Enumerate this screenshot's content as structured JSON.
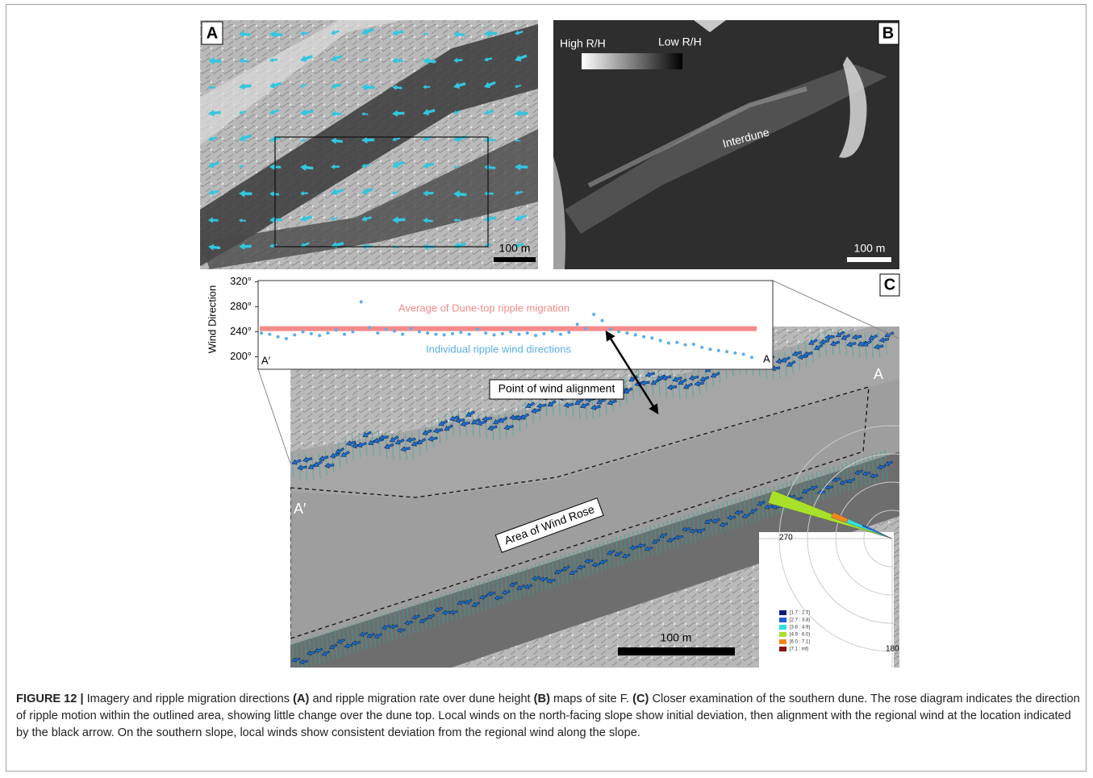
{
  "panels": {
    "a": {
      "label": "A",
      "scale_bar": "100 m"
    },
    "b": {
      "label": "B",
      "legend_high": "High R/H",
      "legend_low": "Low R/H",
      "annotation": "Interdune",
      "scale_bar": "100 m"
    },
    "c": {
      "label": "C",
      "scale_bar": "100 m",
      "end_a": "A",
      "end_a_prime": "A′",
      "callout": "Point of wind alignment",
      "area_label": "Area of Wind Rose",
      "profile": {
        "y_label": "Wind Direction",
        "ylim": [
          180,
          322
        ],
        "yticks": [
          {
            "value": 200,
            "label": "200°"
          },
          {
            "value": 240,
            "label": "240°"
          },
          {
            "value": 280,
            "label": "280°"
          },
          {
            "value": 320,
            "label": "320°"
          }
        ],
        "average_label": "Average of Dune-top ripple migration",
        "average": 245,
        "average_color": "#f58a8a",
        "points_label": "Individual ripple wind directions",
        "point_color": "#5aaee8",
        "values": [
          238,
          236,
          232,
          229,
          235,
          240,
          237,
          234,
          238,
          243,
          236,
          240,
          288,
          247,
          238,
          244,
          241,
          236,
          245,
          240,
          238,
          236,
          235,
          237,
          239,
          236,
          244,
          238,
          235,
          237,
          240,
          236,
          238,
          234,
          237,
          241,
          236,
          239,
          252,
          245,
          268,
          258,
          244,
          240,
          238,
          235,
          232,
          230,
          226,
          222,
          223,
          219,
          220,
          215,
          212,
          210,
          208,
          206,
          204,
          199
        ],
        "start_label": "A′",
        "end_label": "A"
      },
      "rose": {
        "angle_labels": [
          "270",
          "180"
        ],
        "legend": [
          {
            "label": "[1.7 : 2.7)",
            "color": "#0b1a7a"
          },
          {
            "label": "[2.7 : 3.8)",
            "color": "#1f5fd6"
          },
          {
            "label": "[3.8 : 4.9)",
            "color": "#2fe0e0"
          },
          {
            "label": "[4.9 : 6.0)",
            "color": "#a8e02a"
          },
          {
            "label": "[6.0 : 7.1)",
            "color": "#f5861f"
          },
          {
            "label": "[7.1 : inf)",
            "color": "#8b1010"
          }
        ]
      }
    }
  },
  "caption": {
    "parts": [
      "FIGURE 12 |",
      " Imagery and ripple migration directions ",
      "(A)",
      " and ripple migration rate over dune height ",
      "(B)",
      " maps of site F. ",
      "(C)",
      " Closer examination of the southern dune. The rose diagram indicates the direction of ripple motion within the outlined area, showing little change over the dune top. Local winds on the north-facing slope show initial deviation, then alignment with the regional wind at the location indicated by the black arrow. On the southern slope, local winds show consistent deviation from the regional wind along the slope."
    ]
  }
}
